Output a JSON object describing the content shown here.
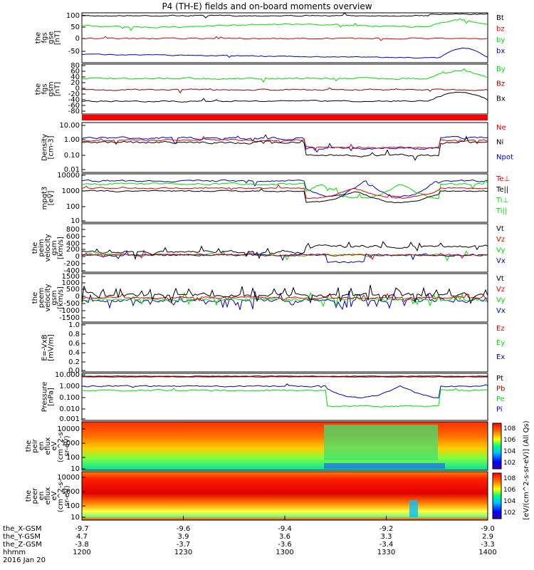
{
  "title": "P4 (TH-E) fields and on-board moments overview",
  "colors": {
    "black": "#000000",
    "red": "#e00000",
    "green": "#00dd00",
    "blue": "#0000cc",
    "darkred": "#a00000"
  },
  "panels": [
    {
      "ylabel": [
        "the",
        "fgs",
        "gse",
        "[nT]"
      ],
      "ticks": [
        "100",
        "50",
        "0",
        "-50"
      ],
      "legend": [
        "Bt",
        "bz",
        "by",
        "bx"
      ],
      "legend_colors": [
        "black",
        "red",
        "green",
        "blue"
      ]
    },
    {
      "ylabel": [
        "the",
        "fgs",
        "gsm",
        "[nT]"
      ],
      "ticks": [
        "80",
        "60",
        "40",
        "20",
        "0",
        "-20",
        "-40",
        "-60",
        "-80"
      ],
      "legend": [
        "By",
        "Bz",
        "Bx"
      ],
      "legend_colors": [
        "green",
        "darkred",
        "black"
      ]
    },
    {
      "ylabel": [
        "Density",
        "[cm-3]"
      ],
      "ticks": [
        "10.00",
        "1.00",
        "0.10",
        "0.01"
      ],
      "legend": [
        "Ne",
        "Ni",
        "Npot"
      ],
      "legend_colors": [
        "red",
        "black",
        "blue"
      ]
    },
    {
      "ylabel": [
        "mpgt3",
        "[eV]"
      ],
      "ticks": [
        "10000",
        "1000",
        "100",
        "10"
      ],
      "legend": [
        "Te⊥",
        "Te||",
        "Ti⊥",
        "Ti||"
      ],
      "legend_colors": [
        "red",
        "black",
        "green",
        "green"
      ]
    },
    {
      "ylabel": [
        "the",
        "peim",
        "velocity",
        "gsm",
        "[km/s]"
      ],
      "ticks": [
        "800",
        "600",
        "400",
        "200",
        "0",
        "-200",
        "-400"
      ],
      "legend": [
        "Vt",
        "Vz",
        "Vy",
        "Vx"
      ],
      "legend_colors": [
        "black",
        "red",
        "green",
        "blue"
      ]
    },
    {
      "ylabel": [
        "the",
        "peem",
        "velocity",
        "gsm",
        "[km/s]"
      ],
      "ticks": [
        "1500",
        "1000",
        "500",
        "0",
        "-500",
        "-1000",
        "-1500"
      ],
      "legend": [
        "Vt",
        "Vz",
        "Vy",
        "Vx"
      ],
      "legend_colors": [
        "black",
        "red",
        "green",
        "blue"
      ]
    },
    {
      "ylabel": [
        "E=-VxB",
        "[mV/m]"
      ],
      "ticks": [
        "1.0",
        "0.8",
        "0.6",
        "0.4",
        "0.2",
        "0.0"
      ],
      "legend": [
        "Ez",
        "Ey",
        "Ex"
      ],
      "legend_colors": [
        "red",
        "green",
        "blue"
      ]
    },
    {
      "ylabel": [
        "Pressure",
        "[nPa]"
      ],
      "ticks": [
        "10.000",
        "1.000",
        "0.100",
        "0.010",
        "0.001"
      ],
      "legend": [
        "Pt",
        "Pb",
        "Pe",
        "Pi"
      ],
      "legend_colors": [
        "black",
        "darkred",
        "green",
        "blue"
      ]
    },
    {
      "ylabel": [
        "the",
        "peir",
        "en",
        "eflux",
        "eV",
        "(cm^2-s-",
        "sr-eV)"
      ],
      "ticks": [
        "10000",
        "1000",
        "100",
        "10"
      ],
      "colorbar_ticks": [
        "10^8",
        "10^6",
        "10^4",
        "10^2"
      ],
      "colorbar_label": "[eV/(cm^2-s-sr-eV)] (All Qs)"
    },
    {
      "ylabel": [
        "the",
        "peer",
        "en",
        "eflux",
        "eV",
        "(cm^2-s-",
        "sr-eV)"
      ],
      "ticks": [
        "10000",
        "1000",
        "100",
        "10"
      ],
      "colorbar_ticks": [
        "10^8",
        "10^6",
        "10^4",
        "10^2"
      ]
    }
  ],
  "xaxis": {
    "row_labels": [
      "the_X-GSM",
      "the_Y-GSM",
      "the_Z-GSM",
      "hhmm"
    ],
    "columns": [
      {
        "values": [
          "-9.7",
          "4.7",
          "-3.8",
          "1200"
        ]
      },
      {
        "values": [
          "-9.6",
          "3.9",
          "-3.7",
          "1230"
        ]
      },
      {
        "values": [
          "-9.4",
          "3.6",
          "-3.6",
          "1300"
        ]
      },
      {
        "values": [
          "-9.2",
          "3.3",
          "-3.4",
          "1330"
        ]
      },
      {
        "values": [
          "-9.0",
          "2.9",
          "-3.3",
          "1400"
        ]
      }
    ],
    "date": "2016 Jan 20"
  },
  "chart_data": {
    "type": "line",
    "time_range": [
      "1200",
      "1400"
    ],
    "note_series": "multi-panel summary plot; curves traced approximately"
  }
}
